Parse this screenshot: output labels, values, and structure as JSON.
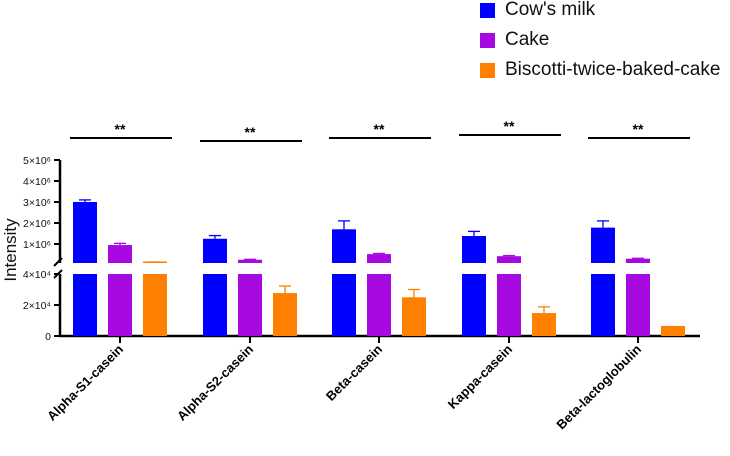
{
  "chart_data": {
    "type": "bar",
    "title": "",
    "xlabel": "",
    "ylabel": "Intensity",
    "categories": [
      "Alpha-S1-casein",
      "Alpha-S2-casein",
      "Beta-casein",
      "Kappa-casein",
      "Beta-lactoglobulin"
    ],
    "series": [
      {
        "name": "Cow's milk",
        "color": "#0000ff",
        "values": [
          3000000,
          1250000,
          1700000,
          1380000,
          1780000
        ],
        "errors": [
          100000,
          150000,
          400000,
          220000,
          320000
        ]
      },
      {
        "name": "Cake",
        "color": "#a60ae0",
        "values": [
          950000,
          250000,
          520000,
          420000,
          300000
        ],
        "errors": [
          80000,
          20000,
          30000,
          30000,
          20000
        ]
      },
      {
        "name": "Biscotti-twice-baked-cake",
        "color": "#ff8000",
        "values": [
          105000,
          27700,
          25000,
          14800,
          6500
        ],
        "errors": [
          3000,
          4500,
          5000,
          4000,
          0
        ]
      }
    ],
    "y_axis_break": {
      "lower_range": [
        0,
        40000
      ],
      "upper_range": [
        100000,
        5000000
      ]
    },
    "y_ticks_lower": [
      "0",
      "2×10⁴",
      "4×10⁴"
    ],
    "y_ticks_upper": [
      "1×10⁶",
      "2×10⁶",
      "3×10⁶",
      "4×10⁶",
      "5×10⁶"
    ],
    "y_tick_values_lower": [
      0,
      20000,
      40000
    ],
    "y_tick_values_upper": [
      1000000,
      2000000,
      3000000,
      4000000,
      5000000
    ],
    "significance": [
      "**",
      "**",
      "**",
      "**",
      "**"
    ],
    "legend_position": "top-right"
  }
}
